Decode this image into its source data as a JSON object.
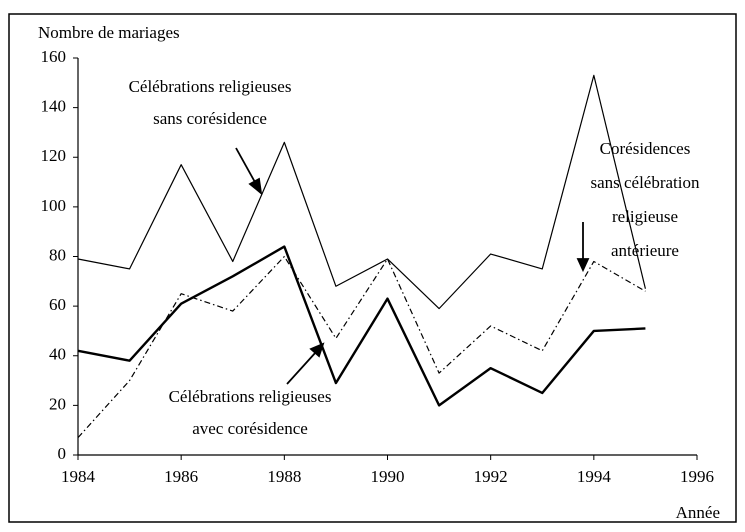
{
  "chart_data": {
    "type": "line",
    "y_label": "Nombre de mariages",
    "x_label": "Année",
    "x": [
      1984,
      1985,
      1986,
      1987,
      1988,
      1989,
      1990,
      1991,
      1992,
      1993,
      1994,
      1995
    ],
    "series": [
      {
        "color": "#000000",
        "style": "thin",
        "values": [
          79,
          75,
          117,
          78,
          126,
          68,
          79,
          59,
          81,
          75,
          153,
          67
        ]
      },
      {
        "color": "#000000",
        "style": "thick",
        "values": [
          42,
          38,
          61,
          72,
          84,
          29,
          63,
          20,
          35,
          25,
          50,
          51
        ]
      },
      {
        "color": "#000000",
        "style": "dashdot",
        "values": [
          7,
          30,
          65,
          58,
          80,
          47,
          79,
          33,
          52,
          42,
          78,
          66
        ]
      }
    ],
    "xlim": [
      1984,
      1996
    ],
    "xticks": [
      1984,
      1986,
      1988,
      1990,
      1992,
      1994,
      1996
    ],
    "ylim": [
      0,
      160
    ],
    "yticks": [
      0,
      20,
      40,
      60,
      80,
      100,
      120,
      140,
      160
    ],
    "annotations": [
      {
        "lines": [
          "Célébrations religieuses",
          "sans corésidence"
        ]
      },
      {
        "lines": [
          "Corésidences",
          "sans célébration",
          "religieuse",
          "antérieure"
        ]
      },
      {
        "lines": [
          "Célébrations religieuses",
          "avec corésidence"
        ]
      }
    ]
  }
}
